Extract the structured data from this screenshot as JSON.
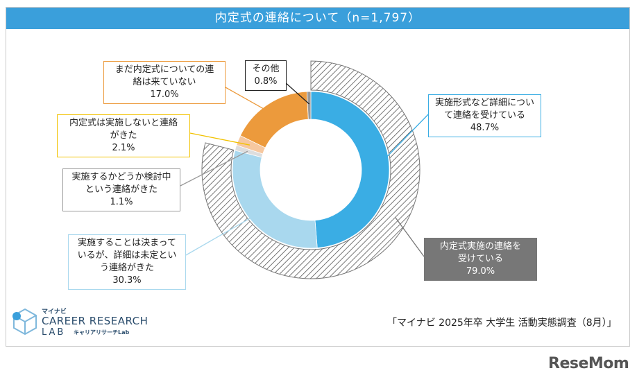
{
  "title": "内定式の連絡について（n=1,797）",
  "chart_data": {
    "type": "pie",
    "inner_ring": {
      "slices": [
        {
          "label": "実施形式など詳細について連絡を受けている",
          "value": 48.7,
          "color": "#3aade4"
        },
        {
          "label": "実施することは決まっているが、詳細は未定という連絡がきた",
          "value": 30.3,
          "color": "#a9d8ee"
        },
        {
          "label": "実施するかどうか検討中という連絡がきた",
          "value": 1.1,
          "color": "#dddddd"
        },
        {
          "label": "内定式は実施しないと連絡がきた",
          "value": 2.1,
          "color": "#f6c8a0"
        },
        {
          "label": "まだ内定式についての連絡は来ていない",
          "value": 17.0,
          "color": "#ec9a3c"
        },
        {
          "label": "その他",
          "value": 0.8,
          "color": "#999999"
        }
      ]
    },
    "outer_ring": {
      "label": "内定式実施の連絡を受けている",
      "value": 79.0,
      "pattern": "hatched"
    }
  },
  "callouts": {
    "detailed": {
      "lines": [
        "実施形式など詳細につい",
        "て連絡を受けている"
      ],
      "pct": "48.7%",
      "border": "#3aade4"
    },
    "undecided": {
      "lines": [
        "実施することは決まって",
        "いるが、詳細は未定とい",
        "う連絡がきた"
      ],
      "pct": "30.3%",
      "border": "#a9d8ee"
    },
    "considering": {
      "lines": [
        "実施するかどうか検討中",
        "という連絡がきた"
      ],
      "pct": "1.1%",
      "border": "#999999"
    },
    "not_held": {
      "lines": [
        "内定式は実施しないと連絡",
        "がきた"
      ],
      "pct": "2.1%",
      "border": "#f2c200"
    },
    "no_contact": {
      "lines": [
        "まだ内定式についての連",
        "絡は来ていない"
      ],
      "pct": "17.0%",
      "border": "#ec9a3c"
    },
    "other": {
      "lines": [
        "その他"
      ],
      "pct": "0.8%",
      "border": "#222222"
    },
    "received": {
      "lines": [
        "内定式実施の連絡を",
        "受けている"
      ],
      "pct": "79.0%"
    }
  },
  "source": "「マイナビ 2025年卒 大学生 活動実態調査（8月）」",
  "logo": {
    "top": "マイナビ",
    "name": "CAREER RESEARCH",
    "sub": "LAB",
    "tag": "キャリアリサーチLab"
  },
  "watermark": "ReseMom"
}
